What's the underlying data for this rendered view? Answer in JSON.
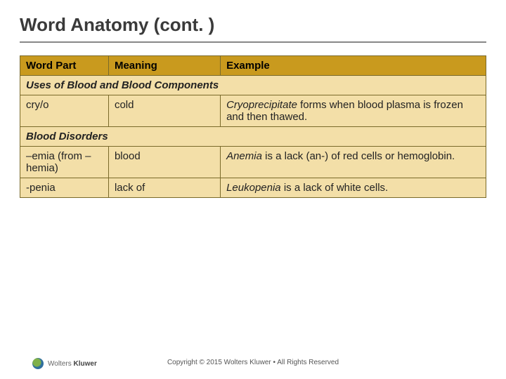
{
  "title": "Word Anatomy (cont. )",
  "columns": [
    "Word Part",
    "Meaning",
    "Example"
  ],
  "col_widths_pct": [
    19,
    24,
    57
  ],
  "sections": [
    {
      "heading": "Uses of Blood and Blood Components",
      "rows": [
        {
          "part": "cry/o",
          "meaning": "cold",
          "example_em": "Cryoprecipitate",
          "example_rest": " forms when blood plasma is frozen and then thawed."
        }
      ]
    },
    {
      "heading": "Blood Disorders",
      "rows": [
        {
          "part": "–emia (from –hemia)",
          "meaning": "blood",
          "example_em": "Anemia",
          "example_rest": " is a lack (an-) of red cells or hemoglobin."
        },
        {
          "part": "-penia",
          "meaning": "lack of",
          "example_em": "Leukopenia",
          "example_rest": " is a lack of white cells."
        }
      ]
    }
  ],
  "colors": {
    "header_bg": "#c99a1e",
    "cell_bg": "#f3dfa8",
    "border": "#7a6a2a",
    "title_color": "#3a3a3a"
  },
  "logo": {
    "brand_light": "Wolters",
    "brand_bold": "Kluwer"
  },
  "copyright": "Copyright © 2015 Wolters Kluwer • All Rights Reserved"
}
